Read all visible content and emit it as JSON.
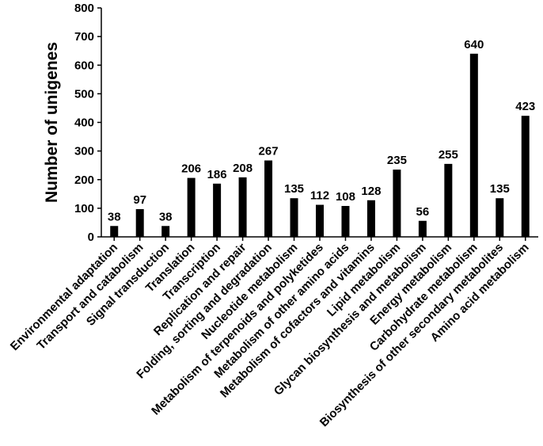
{
  "chart_data": {
    "type": "bar",
    "title": "",
    "xlabel": "",
    "ylabel": "Number of unigenes",
    "ylim": [
      0,
      800
    ],
    "yticks": [
      0,
      100,
      200,
      300,
      400,
      500,
      600,
      700,
      800
    ],
    "grid": false,
    "legend": "none",
    "bar_color": "#000000",
    "categories": [
      "Environmental adaptation",
      "Transport and catabolism",
      "Signal transduction",
      "Translation",
      "Transcription",
      "Replication and repair",
      "Folding, sorting and degradation",
      "Nucleotide metabolism",
      "Metabolism of terpenoids and polyketides",
      "Metabolism of other amino acids",
      "Metabolism of cofactors and vitamins",
      "Lipid metabolism",
      "Glycan biosynthesis and metabolism",
      "Energy metabolism",
      "Carbohydrate metabolism",
      "Biosynthesis of other secondary metabolites",
      "Amino acid metabolism"
    ],
    "values": [
      38,
      97,
      38,
      206,
      186,
      208,
      267,
      135,
      112,
      108,
      128,
      235,
      56,
      255,
      640,
      135,
      423
    ]
  }
}
